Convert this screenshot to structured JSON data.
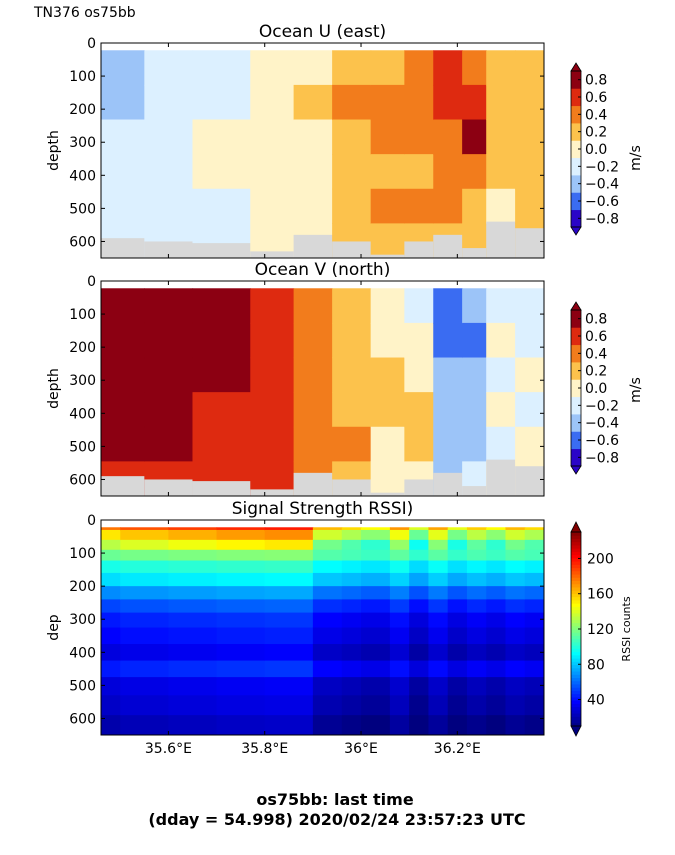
{
  "header": {
    "cruise_label": "TN376 os75bb"
  },
  "footer": {
    "line1": "os75bb: last time",
    "line2": "(dday = 54.998) 2020/02/24 23:57:23 UTC"
  },
  "colors": {
    "land_mask": "#d8d8d8",
    "diverging": [
      "#2a05c8",
      "#3a6cf2",
      "#9cc4f8",
      "#dcf0ff",
      "#fff3c8",
      "#fcc24c",
      "#f27c1c",
      "#de2a10",
      "#8c0012"
    ],
    "jet": [
      "#00007f",
      "#0000ff",
      "#007fff",
      "#00ffff",
      "#7fff7f",
      "#ffff00",
      "#ff7f00",
      "#ff0000",
      "#7f0000"
    ]
  },
  "chart_data": [
    {
      "type": "heatmap",
      "title": "Ocean U (east)",
      "ylabel": "depth",
      "xlabel": "",
      "ylim": [
        650,
        0
      ],
      "xlim": [
        35.46,
        36.38
      ],
      "x_ticks": [
        35.6,
        35.8,
        36.0,
        36.2
      ],
      "x_tick_labels": [
        "",
        "",
        "",
        ""
      ],
      "y_ticks": [
        0,
        100,
        200,
        300,
        400,
        500,
        600
      ],
      "y_tick_labels": [
        "0",
        "100",
        "200",
        "300",
        "400",
        "500",
        "600"
      ],
      "colorbar": {
        "label": "m/s",
        "levels": [
          -0.9,
          -0.7,
          -0.5,
          -0.3,
          -0.1,
          0.1,
          0.3,
          0.5,
          0.7,
          0.9
        ],
        "tick_values": [
          0.8,
          0.6,
          0.4,
          0.2,
          0.0,
          -0.2,
          -0.4,
          -0.6,
          -0.8
        ],
        "tick_labels": [
          "0.8",
          "0.6",
          "0.4",
          "0.2",
          "0.0",
          "−0.2",
          "−0.4",
          "−0.6",
          "−0.8"
        ],
        "extend": "both"
      },
      "columns": [
        {
          "x_start": 35.46,
          "x_end": 35.55,
          "values": [
            -0.5,
            -0.5,
            -0.3,
            -0.3,
            -0.3,
            -0.3
          ],
          "bottom_depth": 590
        },
        {
          "x_start": 35.55,
          "x_end": 35.65,
          "values": [
            -0.3,
            -0.3,
            -0.3,
            -0.3,
            -0.3,
            -0.3
          ],
          "bottom_depth": 600
        },
        {
          "x_start": 35.65,
          "x_end": 35.77,
          "values": [
            -0.3,
            -0.3,
            -0.1,
            -0.1,
            -0.3,
            -0.3
          ],
          "bottom_depth": 605
        },
        {
          "x_start": 35.77,
          "x_end": 35.86,
          "values": [
            -0.1,
            -0.1,
            -0.1,
            -0.1,
            -0.1,
            -0.1
          ],
          "bottom_depth": 630
        },
        {
          "x_start": 35.86,
          "x_end": 35.94,
          "values": [
            -0.1,
            0.1,
            -0.1,
            -0.1,
            -0.1,
            -0.1
          ],
          "bottom_depth": 580
        },
        {
          "x_start": 35.94,
          "x_end": 36.02,
          "values": [
            0.1,
            0.3,
            0.1,
            0.1,
            0.1,
            0.1
          ],
          "bottom_depth": 600
        },
        {
          "x_start": 36.02,
          "x_end": 36.09,
          "values": [
            0.1,
            0.3,
            0.3,
            0.1,
            0.3,
            0.1
          ],
          "bottom_depth": 640
        },
        {
          "x_start": 36.09,
          "x_end": 36.15,
          "values": [
            0.3,
            0.3,
            0.3,
            0.1,
            0.3,
            0.1
          ],
          "bottom_depth": 600
        },
        {
          "x_start": 36.15,
          "x_end": 36.21,
          "values": [
            0.5,
            0.5,
            0.3,
            0.3,
            0.3,
            0.1
          ],
          "bottom_depth": 580
        },
        {
          "x_start": 36.21,
          "x_end": 36.26,
          "values": [
            0.3,
            0.5,
            0.7,
            0.3,
            0.1,
            0.1
          ],
          "bottom_depth": 620
        },
        {
          "x_start": 36.26,
          "x_end": 36.32,
          "values": [
            0.1,
            0.1,
            0.1,
            0.1,
            -0.1,
            0.1
          ],
          "bottom_depth": 540
        },
        {
          "x_start": 36.32,
          "x_end": 36.38,
          "values": [
            0.1,
            0.1,
            0.1,
            0.1,
            0.1,
            0.1
          ],
          "bottom_depth": 560
        }
      ]
    },
    {
      "type": "heatmap",
      "title": "Ocean V (north)",
      "ylabel": "depth",
      "xlabel": "",
      "ylim": [
        650,
        0
      ],
      "xlim": [
        35.46,
        36.38
      ],
      "x_ticks": [
        35.6,
        35.8,
        36.0,
        36.2
      ],
      "x_tick_labels": [
        "",
        "",
        "",
        ""
      ],
      "y_ticks": [
        0,
        100,
        200,
        300,
        400,
        500,
        600
      ],
      "y_tick_labels": [
        "0",
        "100",
        "200",
        "300",
        "400",
        "500",
        "600"
      ],
      "colorbar": {
        "label": "m/s",
        "levels": [
          -0.9,
          -0.7,
          -0.5,
          -0.3,
          -0.1,
          0.1,
          0.3,
          0.5,
          0.7,
          0.9
        ],
        "tick_values": [
          0.8,
          0.6,
          0.4,
          0.2,
          0.0,
          -0.2,
          -0.4,
          -0.6,
          -0.8
        ],
        "tick_labels": [
          "0.8",
          "0.6",
          "0.4",
          "0.2",
          "0.0",
          "−0.2",
          "−0.4",
          "−0.6",
          "−0.8"
        ],
        "extend": "both"
      },
      "columns": [
        {
          "x_start": 35.46,
          "x_end": 35.55,
          "values": [
            0.8,
            0.7,
            0.7,
            0.7,
            0.7,
            0.5
          ],
          "bottom_depth": 590
        },
        {
          "x_start": 35.55,
          "x_end": 35.65,
          "values": [
            0.8,
            0.7,
            0.7,
            0.7,
            0.7,
            0.5
          ],
          "bottom_depth": 600
        },
        {
          "x_start": 35.65,
          "x_end": 35.77,
          "values": [
            0.7,
            0.7,
            0.7,
            0.5,
            0.5,
            0.5
          ],
          "bottom_depth": 605
        },
        {
          "x_start": 35.77,
          "x_end": 35.86,
          "values": [
            0.5,
            0.5,
            0.5,
            0.5,
            0.5,
            0.5
          ],
          "bottom_depth": 630
        },
        {
          "x_start": 35.86,
          "x_end": 35.94,
          "values": [
            0.3,
            0.3,
            0.3,
            0.3,
            0.3,
            0.3
          ],
          "bottom_depth": 580
        },
        {
          "x_start": 35.94,
          "x_end": 36.02,
          "values": [
            0.1,
            0.1,
            0.1,
            0.1,
            0.3,
            0.1
          ],
          "bottom_depth": 600
        },
        {
          "x_start": 36.02,
          "x_end": 36.09,
          "values": [
            -0.1,
            -0.1,
            0.1,
            0.1,
            -0.1,
            -0.1
          ],
          "bottom_depth": 640
        },
        {
          "x_start": 36.09,
          "x_end": 36.15,
          "values": [
            -0.3,
            -0.1,
            -0.1,
            0.1,
            0.1,
            -0.1
          ],
          "bottom_depth": 600
        },
        {
          "x_start": 36.15,
          "x_end": 36.21,
          "values": [
            -0.7,
            -0.7,
            -0.5,
            -0.5,
            -0.5,
            -0.5
          ],
          "bottom_depth": 580
        },
        {
          "x_start": 36.21,
          "x_end": 36.26,
          "values": [
            -0.5,
            -0.7,
            -0.5,
            -0.5,
            -0.5,
            -0.3
          ],
          "bottom_depth": 620
        },
        {
          "x_start": 36.26,
          "x_end": 36.32,
          "values": [
            -0.3,
            -0.1,
            -0.3,
            -0.1,
            -0.3,
            -0.1
          ],
          "bottom_depth": 540
        },
        {
          "x_start": 36.32,
          "x_end": 36.38,
          "values": [
            -0.3,
            -0.3,
            -0.1,
            -0.3,
            -0.1,
            -0.1
          ],
          "bottom_depth": 560
        }
      ]
    },
    {
      "type": "heatmap",
      "title": "Signal Strength RSSI)",
      "ylabel": "dep",
      "xlabel": "",
      "ylim": [
        650,
        0
      ],
      "xlim": [
        35.46,
        36.38
      ],
      "x_ticks": [
        35.6,
        35.8,
        36.0,
        36.2
      ],
      "x_tick_labels": [
        "35.6°E",
        "35.8°E",
        "36°E",
        "36.2°E"
      ],
      "y_ticks": [
        0,
        100,
        200,
        300,
        400,
        500,
        600
      ],
      "y_tick_labels": [
        "0",
        "100",
        "200",
        "300",
        "400",
        "500",
        "600"
      ],
      "colorbar": {
        "label": "RSSI counts",
        "vmin": 10,
        "vmax": 230,
        "tick_values": [
          200,
          160,
          120,
          80,
          40
        ],
        "tick_labels": [
          "200",
          "160",
          "120",
          "80",
          "40"
        ],
        "extend": "both"
      },
      "depth_profile": [
        {
          "depth": 15,
          "value": 185
        },
        {
          "depth": 45,
          "value": 160
        },
        {
          "depth": 75,
          "value": 140
        },
        {
          "depth": 105,
          "value": 118
        },
        {
          "depth": 140,
          "value": 100
        },
        {
          "depth": 180,
          "value": 88
        },
        {
          "depth": 220,
          "value": 70
        },
        {
          "depth": 260,
          "value": 55
        },
        {
          "depth": 300,
          "value": 45
        },
        {
          "depth": 350,
          "value": 40
        },
        {
          "depth": 400,
          "value": 33
        },
        {
          "depth": 450,
          "value": 45
        },
        {
          "depth": 500,
          "value": 32
        },
        {
          "depth": 560,
          "value": 28
        },
        {
          "depth": 620,
          "value": 22
        }
      ],
      "column_offsets": [
        {
          "x": 35.5,
          "offset": -5
        },
        {
          "x": 35.6,
          "offset": 0
        },
        {
          "x": 35.7,
          "offset": 3
        },
        {
          "x": 35.8,
          "offset": 6
        },
        {
          "x": 35.9,
          "offset": 8
        },
        {
          "x": 35.96,
          "offset": -15
        },
        {
          "x": 36.0,
          "offset": -20
        },
        {
          "x": 36.06,
          "offset": -25
        },
        {
          "x": 36.1,
          "offset": -10
        },
        {
          "x": 36.14,
          "offset": -30
        },
        {
          "x": 36.18,
          "offset": -12
        },
        {
          "x": 36.22,
          "offset": -28
        },
        {
          "x": 36.26,
          "offset": -18
        },
        {
          "x": 36.3,
          "offset": -25
        },
        {
          "x": 36.34,
          "offset": -15
        },
        {
          "x": 36.38,
          "offset": -20
        }
      ]
    }
  ]
}
